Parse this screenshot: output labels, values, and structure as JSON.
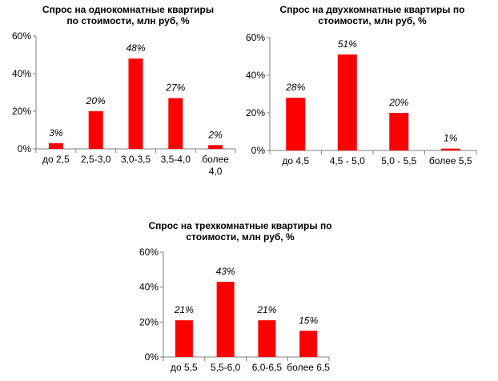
{
  "chart_data": [
    {
      "type": "bar",
      "title_lines": [
        "Спрос на однокомнатные квартиры",
        "по стоимости, млн руб, %"
      ],
      "categories": [
        [
          "до 2,5"
        ],
        [
          "2,5-3,0"
        ],
        [
          "3,0-3,5"
        ],
        [
          "3,5-4,0"
        ],
        [
          "более",
          "4,0"
        ]
      ],
      "values": [
        3,
        20,
        48,
        27,
        2
      ],
      "data_labels": [
        "3%",
        "20%",
        "48%",
        "27%",
        "2%"
      ],
      "yticks": [
        "0%",
        "20%",
        "40%",
        "60%"
      ],
      "ylim": [
        0,
        60
      ],
      "bar_color": "#ff0000",
      "grid": false,
      "legend": "none"
    },
    {
      "type": "bar",
      "title_lines": [
        "Спрос на двухкомнатные квартиры по",
        "стоимости, млн руб, %"
      ],
      "categories": [
        [
          "до 4,5"
        ],
        [
          "4,5 - 5,0"
        ],
        [
          "5,0 - 5,5"
        ],
        [
          "более 5,5"
        ]
      ],
      "values": [
        28,
        51,
        20,
        1
      ],
      "data_labels": [
        "28%",
        "51%",
        "20%",
        "1%"
      ],
      "yticks": [
        "0%",
        "20%",
        "40%",
        "60%"
      ],
      "ylim": [
        0,
        60
      ],
      "bar_color": "#ff0000",
      "grid": false,
      "legend": "none"
    },
    {
      "type": "bar",
      "title_lines": [
        "Спрос на трехкомнатные квартиры по",
        "стоимости, млн руб, %"
      ],
      "categories": [
        [
          "до 5,5"
        ],
        [
          "5,5-6,0"
        ],
        [
          "6,0-6,5"
        ],
        [
          "более 6,5"
        ]
      ],
      "values": [
        21,
        43,
        21,
        15
      ],
      "data_labels": [
        "21%",
        "43%",
        "21%",
        "15%"
      ],
      "yticks": [
        "0%",
        "20%",
        "40%",
        "60%"
      ],
      "ylim": [
        0,
        60
      ],
      "bar_color": "#ff0000",
      "grid": false,
      "legend": "none"
    }
  ]
}
